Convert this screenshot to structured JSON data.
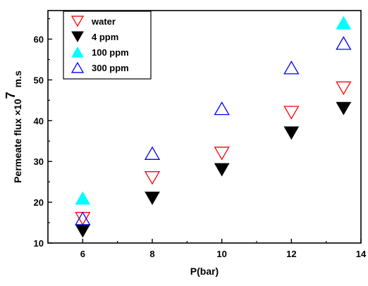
{
  "chart_data": {
    "type": "scatter",
    "xlabel": "P(bar)",
    "ylabel_main": "Permeate flux ×10",
    "ylabel_sup": "7",
    "ylabel_unit": "m.s",
    "xlim": [
      5,
      14
    ],
    "ylim": [
      10,
      67
    ],
    "x_ticks": [
      6,
      8,
      10,
      12,
      14
    ],
    "y_ticks": [
      10,
      20,
      30,
      40,
      50,
      60
    ],
    "grid": false,
    "legend_position": "top-left",
    "x": [
      6,
      8,
      10,
      12,
      13.5
    ],
    "series": [
      {
        "name": "water",
        "marker": "triangle-down",
        "filled": false,
        "color": "#ff0000",
        "values": [
          16,
          26,
          32,
          42,
          48
        ]
      },
      {
        "name": "4 ppm",
        "marker": "triangle-down",
        "filled": true,
        "color": "#000000",
        "values": [
          13,
          21,
          28,
          37,
          43
        ]
      },
      {
        "name": "100 ppm",
        "marker": "triangle-up",
        "filled": true,
        "color": "#00ffff",
        "values": [
          21,
          null,
          null,
          null,
          64
        ]
      },
      {
        "name": "300 ppm",
        "marker": "triangle-up",
        "filled": false,
        "color": "#0000ff",
        "values": [
          16,
          32,
          43,
          53,
          59
        ]
      }
    ]
  }
}
